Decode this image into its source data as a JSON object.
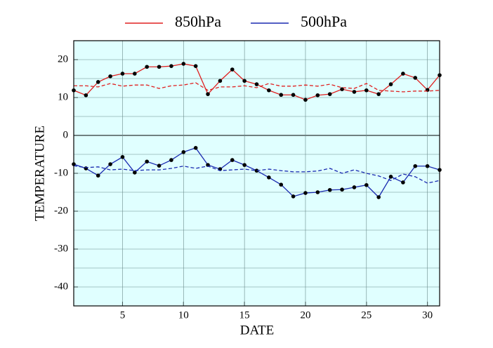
{
  "chart_data": {
    "type": "line",
    "xlabel": "DATE",
    "ylabel": "TEMPERATURE",
    "x": [
      1,
      2,
      3,
      4,
      5,
      6,
      7,
      8,
      9,
      10,
      11,
      12,
      13,
      14,
      15,
      16,
      17,
      18,
      19,
      20,
      21,
      22,
      23,
      24,
      25,
      26,
      27,
      28,
      29,
      30,
      31
    ],
    "xlim": [
      1,
      31
    ],
    "xticks": [
      5,
      10,
      15,
      20,
      25,
      30
    ],
    "ylim": [
      -45,
      25
    ],
    "yticks": [
      -40,
      -30,
      -20,
      -10,
      0,
      10,
      20
    ],
    "minor_yticks": [
      -35,
      -25,
      -15,
      -5,
      5,
      15
    ],
    "grid": true,
    "legend": "top",
    "background": "#e0ffff",
    "zero_line": true,
    "series": [
      {
        "name": "850hPa",
        "color": "#e02020",
        "style": "solid",
        "marker": true,
        "values": [
          11.9,
          10.6,
          14.1,
          15.6,
          16.3,
          16.3,
          18.1,
          18.1,
          18.3,
          18.9,
          18.3,
          10.9,
          14.4,
          17.4,
          14.4,
          13.5,
          11.9,
          10.7,
          10.7,
          9.4,
          10.6,
          10.9,
          12.2,
          11.5,
          11.9,
          10.9,
          13.5,
          16.3,
          15.2,
          12.0,
          15.9
        ]
      },
      {
        "name": "500hPa",
        "color": "#1a2ab0",
        "style": "solid",
        "marker": true,
        "values": [
          -7.6,
          -8.7,
          -10.6,
          -7.6,
          -5.7,
          -9.8,
          -6.9,
          -8.0,
          -6.5,
          -4.4,
          -3.3,
          -7.8,
          -8.9,
          -6.5,
          -7.8,
          -9.3,
          -11.1,
          -13.0,
          -16.1,
          -15.2,
          -15.0,
          -14.4,
          -14.3,
          -13.7,
          -13.1,
          -16.3,
          -10.9,
          -12.4,
          -8.1,
          -8.1,
          -9.1
        ]
      },
      {
        "color": "#e02020",
        "style": "dashed",
        "marker": false,
        "values": [
          13.1,
          13.1,
          12.8,
          13.7,
          13.0,
          13.3,
          13.3,
          12.4,
          13.1,
          13.3,
          13.9,
          11.9,
          12.8,
          12.8,
          13.1,
          12.6,
          13.7,
          13.0,
          13.0,
          13.3,
          13.0,
          13.5,
          12.6,
          12.4,
          13.7,
          11.9,
          11.7,
          11.5,
          11.7,
          11.7,
          11.9
        ]
      },
      {
        "color": "#1a2ab0",
        "style": "dashed",
        "marker": false,
        "values": [
          -8.0,
          -8.5,
          -8.3,
          -9.1,
          -8.9,
          -9.3,
          -9.1,
          -9.1,
          -8.7,
          -8.1,
          -8.7,
          -8.1,
          -9.3,
          -9.1,
          -8.9,
          -9.3,
          -8.9,
          -9.3,
          -9.6,
          -9.6,
          -9.4,
          -8.7,
          -10.0,
          -9.1,
          -10.0,
          -10.7,
          -11.9,
          -10.2,
          -10.9,
          -12.6,
          -11.9
        ]
      }
    ]
  }
}
